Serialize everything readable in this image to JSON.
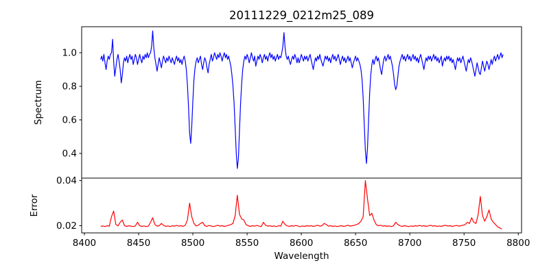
{
  "figure_title": "20111229_0212m25_089",
  "colors": {
    "spectrum_line": "#0000ff",
    "error_line": "#ff0000",
    "axes": "#000000",
    "background": "#ffffff",
    "text": "#000000"
  },
  "chart_data": {
    "type": "line",
    "title": "20111229_0212m25_089",
    "xlabel": "Wavelength",
    "grid": false,
    "x_range": [
      8397.5,
      8803
    ],
    "x_ticks": [
      8400,
      8450,
      8500,
      8550,
      8600,
      8650,
      8700,
      8750,
      8800
    ],
    "x_tick_labels": [
      "8400",
      "8450",
      "8500",
      "8550",
      "8600",
      "8650",
      "8700",
      "8750",
      "8800"
    ],
    "subplots": [
      {
        "name": "spectrum",
        "ylabel": "Spectrum",
        "line_color": "#0000ff",
        "ylim": [
          0.253,
          1.155
        ],
        "y_ticks": [
          0.4,
          0.6,
          0.8,
          1.0
        ],
        "y_tick_labels": [
          "0.4",
          "0.6",
          "0.8",
          "1.0"
        ],
        "x_start": 8415,
        "x_step": 1,
        "values": [
          0.96,
          0.98,
          0.95,
          0.99,
          0.94,
          0.9,
          0.95,
          0.98,
          0.96,
          0.99,
          1.0,
          1.08,
          0.95,
          0.86,
          0.91,
          0.96,
          0.99,
          0.95,
          0.9,
          0.82,
          0.87,
          0.94,
          0.97,
          0.95,
          0.98,
          0.94,
          0.97,
          0.99,
          0.96,
          0.98,
          0.93,
          0.96,
          0.99,
          0.97,
          0.93,
          0.96,
          0.99,
          0.96,
          0.94,
          0.98,
          0.96,
          0.99,
          0.97,
          1.0,
          0.97,
          0.99,
          1.0,
          1.04,
          1.13,
          1.03,
          0.97,
          0.93,
          0.89,
          0.93,
          0.97,
          0.94,
          0.91,
          0.95,
          0.98,
          0.96,
          0.94,
          0.97,
          0.95,
          0.98,
          0.96,
          0.94,
          0.97,
          0.95,
          0.93,
          0.96,
          0.98,
          0.95,
          0.97,
          0.94,
          0.96,
          0.93,
          0.96,
          0.98,
          0.95,
          0.9,
          0.81,
          0.68,
          0.52,
          0.46,
          0.56,
          0.71,
          0.84,
          0.91,
          0.95,
          0.97,
          0.94,
          0.96,
          0.98,
          0.93,
          0.9,
          0.94,
          0.97,
          0.95,
          0.91,
          0.88,
          0.93,
          0.96,
          0.99,
          0.95,
          0.97,
          1.0,
          0.98,
          0.96,
          0.99,
          0.97,
          1.0,
          0.98,
          0.95,
          0.98,
          1.0,
          0.97,
          0.99,
          0.96,
          0.98,
          0.95,
          0.92,
          0.87,
          0.8,
          0.7,
          0.55,
          0.4,
          0.31,
          0.37,
          0.54,
          0.7,
          0.82,
          0.9,
          0.95,
          0.98,
          0.96,
          0.99,
          0.97,
          0.94,
          0.97,
          1.0,
          0.97,
          0.95,
          0.98,
          0.92,
          0.95,
          0.98,
          0.96,
          0.99,
          0.97,
          0.94,
          0.97,
          0.99,
          0.96,
          0.98,
          0.95,
          0.98,
          1.0,
          0.97,
          0.99,
          0.96,
          0.98,
          0.95,
          0.97,
          0.99,
          0.96,
          0.98,
          0.97,
          1.0,
          1.04,
          1.12,
          1.03,
          0.98,
          0.96,
          0.98,
          0.95,
          0.93,
          0.96,
          0.98,
          0.96,
          0.99,
          0.97,
          0.94,
          0.97,
          0.94,
          0.96,
          0.99,
          0.97,
          0.95,
          0.98,
          0.96,
          0.98,
          0.95,
          0.97,
          0.99,
          0.96,
          0.93,
          0.9,
          0.94,
          0.97,
          0.95,
          0.98,
          0.96,
          0.99,
          0.96,
          0.94,
          0.92,
          0.95,
          0.98,
          0.96,
          0.98,
          0.95,
          0.97,
          0.94,
          0.97,
          0.99,
          0.96,
          0.98,
          0.95,
          0.97,
          0.99,
          0.96,
          0.93,
          0.96,
          0.98,
          0.95,
          0.97,
          0.94,
          0.96,
          0.98,
          0.95,
          0.97,
          0.94,
          0.91,
          0.94,
          0.96,
          0.98,
          0.95,
          0.97,
          0.95,
          0.93,
          0.9,
          0.84,
          0.73,
          0.57,
          0.42,
          0.34,
          0.43,
          0.6,
          0.76,
          0.87,
          0.93,
          0.96,
          0.93,
          0.96,
          0.98,
          0.95,
          0.97,
          0.94,
          0.9,
          0.87,
          0.92,
          0.96,
          0.98,
          0.95,
          0.97,
          0.99,
          0.96,
          0.98,
          0.95,
          0.92,
          0.87,
          0.81,
          0.78,
          0.8,
          0.86,
          0.92,
          0.95,
          0.97,
          0.99,
          0.96,
          0.98,
          0.95,
          0.97,
          0.99,
          0.96,
          0.98,
          0.95,
          0.97,
          0.99,
          0.96,
          0.98,
          0.95,
          0.97,
          0.94,
          0.97,
          0.99,
          0.96,
          0.93,
          0.9,
          0.94,
          0.97,
          0.95,
          0.98,
          0.96,
          0.98,
          0.95,
          0.97,
          0.99,
          0.96,
          0.98,
          0.95,
          0.97,
          0.94,
          0.96,
          0.98,
          0.92,
          0.95,
          0.97,
          0.95,
          0.98,
          0.96,
          0.98,
          0.95,
          0.97,
          0.94,
          0.96,
          0.93,
          0.9,
          0.94,
          0.97,
          0.95,
          0.97,
          0.94,
          0.96,
          0.98,
          0.95,
          0.92,
          0.89,
          0.93,
          0.96,
          0.94,
          0.97,
          0.95,
          0.92,
          0.89,
          0.86,
          0.9,
          0.94,
          0.91,
          0.88,
          0.87,
          0.91,
          0.95,
          0.92,
          0.89,
          0.92,
          0.95,
          0.93,
          0.9,
          0.93,
          0.96,
          0.93,
          0.96,
          0.98,
          0.95,
          0.97,
          0.99,
          0.96,
          0.98,
          1.0,
          0.97,
          0.99
        ]
      },
      {
        "name": "error",
        "ylabel": "Error",
        "line_color": "#ff0000",
        "ylim": [
          0.0168,
          0.0411
        ],
        "y_ticks": [
          0.02,
          0.04
        ],
        "y_tick_labels": [
          "0.02",
          "0.04"
        ],
        "x_start": 8415,
        "x_step": 2,
        "values": [
          0.0197,
          0.0199,
          0.0196,
          0.02,
          0.0198,
          0.024,
          0.0265,
          0.0205,
          0.0199,
          0.0215,
          0.0225,
          0.02,
          0.0197,
          0.02,
          0.0198,
          0.0196,
          0.0199,
          0.0215,
          0.02,
          0.0197,
          0.0199,
          0.0196,
          0.0198,
          0.0215,
          0.0235,
          0.0205,
          0.0198,
          0.02,
          0.021,
          0.0202,
          0.0197,
          0.0199,
          0.0196,
          0.02,
          0.0198,
          0.0201,
          0.0198,
          0.02,
          0.0197,
          0.0202,
          0.0225,
          0.03,
          0.024,
          0.021,
          0.0199,
          0.0202,
          0.021,
          0.0215,
          0.02,
          0.0197,
          0.0201,
          0.0198,
          0.0196,
          0.0199,
          0.0202,
          0.0198,
          0.02,
          0.0197,
          0.0199,
          0.0202,
          0.0205,
          0.021,
          0.0245,
          0.0335,
          0.025,
          0.023,
          0.0225,
          0.0205,
          0.02,
          0.0197,
          0.02,
          0.0198,
          0.0201,
          0.0198,
          0.0196,
          0.0215,
          0.0202,
          0.0198,
          0.02,
          0.0197,
          0.0199,
          0.0196,
          0.02,
          0.0198,
          0.022,
          0.0205,
          0.0199,
          0.0197,
          0.02,
          0.0198,
          0.0201,
          0.0198,
          0.0196,
          0.0199,
          0.0197,
          0.02,
          0.0198,
          0.02,
          0.0197,
          0.0199,
          0.0202,
          0.0198,
          0.02,
          0.021,
          0.0205,
          0.0198,
          0.02,
          0.0197,
          0.0199,
          0.0196,
          0.0198,
          0.02,
          0.0197,
          0.0199,
          0.0202,
          0.0198,
          0.02,
          0.0202,
          0.0205,
          0.021,
          0.022,
          0.024,
          0.04,
          0.032,
          0.0245,
          0.0255,
          0.0225,
          0.0205,
          0.02,
          0.0202,
          0.0198,
          0.02,
          0.0197,
          0.0199,
          0.0196,
          0.02,
          0.0215,
          0.0205,
          0.0199,
          0.0197,
          0.02,
          0.0198,
          0.0196,
          0.0199,
          0.0197,
          0.02,
          0.0198,
          0.0201,
          0.0198,
          0.02,
          0.0197,
          0.0199,
          0.0202,
          0.0198,
          0.02,
          0.0197,
          0.0199,
          0.0197,
          0.02,
          0.0202,
          0.0198,
          0.02,
          0.0197,
          0.0199,
          0.0201,
          0.0198,
          0.02,
          0.0202,
          0.0205,
          0.0215,
          0.021,
          0.0235,
          0.0215,
          0.021,
          0.025,
          0.033,
          0.0245,
          0.022,
          0.024,
          0.027,
          0.023,
          0.0215,
          0.0205,
          0.0195,
          0.019,
          0.0185
        ]
      }
    ]
  }
}
